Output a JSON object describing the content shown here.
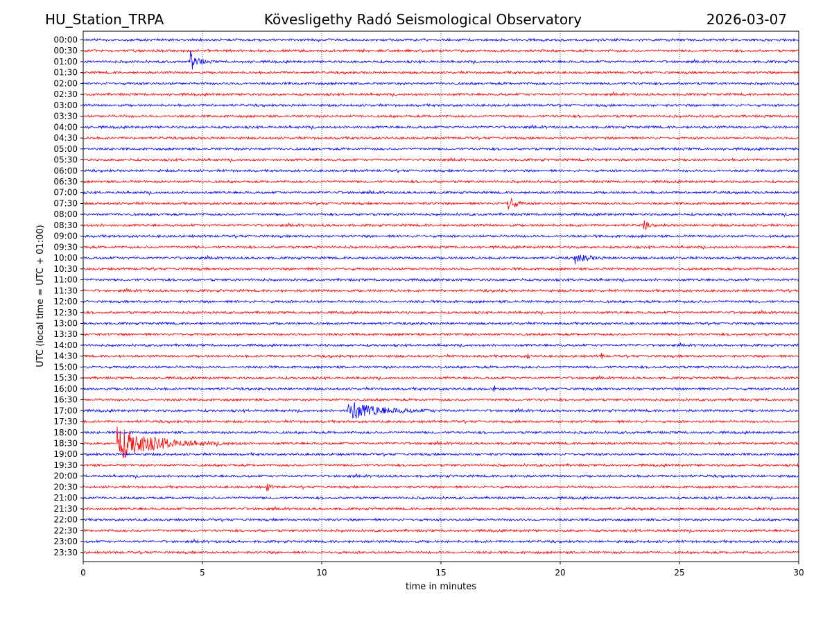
{
  "header": {
    "station": "HU_Station_TRPA",
    "observatory": "Kövesligethy Radó Seismological Observatory",
    "date": "2026-03-07"
  },
  "chart_data": {
    "type": "helicorder",
    "title": "Kövesligethy Radó Seismological Observatory",
    "xlabel": "time in minutes",
    "ylabel": "UTC (local time = UTC + 01:00)",
    "xlim": [
      0,
      30
    ],
    "xticks": [
      0,
      5,
      10,
      15,
      20,
      25,
      30
    ],
    "grid_x": [
      5,
      10,
      15,
      20,
      25
    ],
    "colors": [
      "#0000ff",
      "#ff0000"
    ],
    "rows": [
      "00:00",
      "00:30",
      "01:00",
      "01:30",
      "02:00",
      "02:30",
      "03:00",
      "03:30",
      "04:00",
      "04:30",
      "05:00",
      "05:30",
      "06:00",
      "06:30",
      "07:00",
      "07:30",
      "08:00",
      "08:30",
      "09:00",
      "09:30",
      "10:00",
      "10:30",
      "11:00",
      "11:30",
      "12:00",
      "12:30",
      "13:00",
      "13:30",
      "14:00",
      "14:30",
      "15:00",
      "15:30",
      "16:00",
      "16:30",
      "17:00",
      "17:30",
      "18:00",
      "18:30",
      "19:00",
      "19:30",
      "20:00",
      "20:30",
      "21:00",
      "21:30",
      "22:00",
      "22:30",
      "23:00",
      "23:30"
    ],
    "events": [
      {
        "row": 2,
        "start_min": 4.5,
        "peak_amp": 0.6,
        "duration_min": 1.0
      },
      {
        "row": 15,
        "start_min": 17.8,
        "peak_amp": 0.7,
        "duration_min": 0.8
      },
      {
        "row": 17,
        "start_min": 23.5,
        "peak_amp": 0.35,
        "duration_min": 0.5
      },
      {
        "row": 20,
        "start_min": 20.6,
        "peak_amp": 0.3,
        "duration_min": 1.8
      },
      {
        "row": 29,
        "start_min": 18.6,
        "peak_amp": 0.3,
        "duration_min": 0.2
      },
      {
        "row": 29,
        "start_min": 21.7,
        "peak_amp": 0.35,
        "duration_min": 0.2
      },
      {
        "row": 32,
        "start_min": 17.2,
        "peak_amp": 0.25,
        "duration_min": 0.3
      },
      {
        "row": 34,
        "start_min": 11.1,
        "peak_amp": 0.6,
        "duration_min": 4.5
      },
      {
        "row": 37,
        "start_min": 1.4,
        "peak_amp": 1.0,
        "duration_min": 5.5
      },
      {
        "row": 41,
        "start_min": 7.7,
        "peak_amp": 0.3,
        "duration_min": 0.4
      }
    ]
  }
}
